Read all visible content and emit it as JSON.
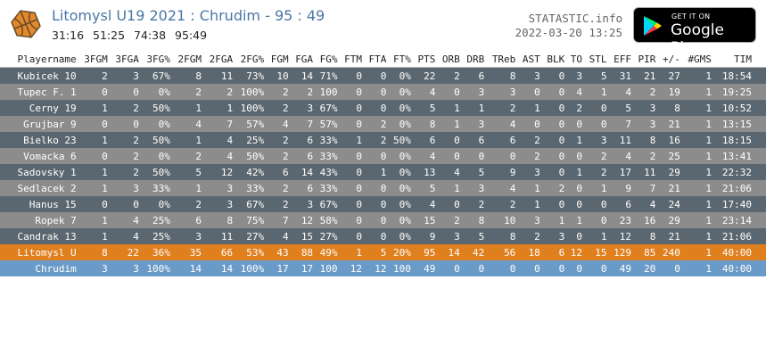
{
  "header": {
    "title": "Litomysl U19 2021 : Chrudim - 95 : 49",
    "periods": [
      "31:16",
      "51:25",
      "74:38",
      "95:49"
    ],
    "site": "STATASTIC.info",
    "datetime": "2022-03-20 13:25",
    "store_badge": {
      "small": "GET IT ON",
      "big": "Google Play"
    }
  },
  "table": {
    "columns": [
      "Playername",
      "3FGM",
      "3FGA",
      "3FG%",
      "2FGM",
      "2FGA",
      "2FG%",
      "FGM",
      "FGA",
      "FG%",
      "FTM",
      "FTA",
      "FT%",
      "PTS",
      "ORB",
      "DRB",
      "TReb",
      "AST",
      "BLK",
      "TO",
      "STL",
      "EFF",
      "PIR",
      "+/-",
      "#GMS",
      "TIM"
    ],
    "rows": [
      [
        "Kubicek 10",
        "2",
        "3",
        "67%",
        "8",
        "11",
        "73%",
        "10",
        "14",
        "71%",
        "0",
        "0",
        "0%",
        "22",
        "2",
        "6",
        "8",
        "3",
        "0",
        "3",
        "5",
        "31",
        "21",
        "27",
        "1",
        "18:54"
      ],
      [
        "Tupec F. 1",
        "0",
        "0",
        "0%",
        "2",
        "2",
        "100%",
        "2",
        "2",
        "100",
        "0",
        "0",
        "0%",
        "4",
        "0",
        "3",
        "3",
        "0",
        "0",
        "4",
        "1",
        "4",
        "2",
        "19",
        "1",
        "19:25"
      ],
      [
        "Cerny 19",
        "1",
        "2",
        "50%",
        "1",
        "1",
        "100%",
        "2",
        "3",
        "67%",
        "0",
        "0",
        "0%",
        "5",
        "1",
        "1",
        "2",
        "1",
        "0",
        "2",
        "0",
        "5",
        "3",
        "8",
        "1",
        "10:52"
      ],
      [
        "Grujbar 9",
        "0",
        "0",
        "0%",
        "4",
        "7",
        "57%",
        "4",
        "7",
        "57%",
        "0",
        "2",
        "0%",
        "8",
        "1",
        "3",
        "4",
        "0",
        "0",
        "0",
        "0",
        "7",
        "3",
        "21",
        "1",
        "13:15"
      ],
      [
        "Bielko 23",
        "1",
        "2",
        "50%",
        "1",
        "4",
        "25%",
        "2",
        "6",
        "33%",
        "1",
        "2",
        "50%",
        "6",
        "0",
        "6",
        "6",
        "2",
        "0",
        "1",
        "3",
        "11",
        "8",
        "16",
        "1",
        "18:15"
      ],
      [
        "Vomacka 6",
        "0",
        "2",
        "0%",
        "2",
        "4",
        "50%",
        "2",
        "6",
        "33%",
        "0",
        "0",
        "0%",
        "4",
        "0",
        "0",
        "0",
        "2",
        "0",
        "0",
        "2",
        "4",
        "2",
        "25",
        "1",
        "13:41"
      ],
      [
        "Sadovsky 1",
        "1",
        "2",
        "50%",
        "5",
        "12",
        "42%",
        "6",
        "14",
        "43%",
        "0",
        "1",
        "0%",
        "13",
        "4",
        "5",
        "9",
        "3",
        "0",
        "1",
        "2",
        "17",
        "11",
        "29",
        "1",
        "22:32"
      ],
      [
        "Sedlacek 2",
        "1",
        "3",
        "33%",
        "1",
        "3",
        "33%",
        "2",
        "6",
        "33%",
        "0",
        "0",
        "0%",
        "5",
        "1",
        "3",
        "4",
        "1",
        "2",
        "0",
        "1",
        "9",
        "7",
        "21",
        "1",
        "21:06"
      ],
      [
        "Hanus 15",
        "0",
        "0",
        "0%",
        "2",
        "3",
        "67%",
        "2",
        "3",
        "67%",
        "0",
        "0",
        "0%",
        "4",
        "0",
        "2",
        "2",
        "1",
        "0",
        "0",
        "0",
        "6",
        "4",
        "24",
        "1",
        "17:40"
      ],
      [
        "Ropek 7",
        "1",
        "4",
        "25%",
        "6",
        "8",
        "75%",
        "7",
        "12",
        "58%",
        "0",
        "0",
        "0%",
        "15",
        "2",
        "8",
        "10",
        "3",
        "1",
        "1",
        "0",
        "23",
        "16",
        "29",
        "1",
        "23:14"
      ],
      [
        "Candrak 13",
        "1",
        "4",
        "25%",
        "3",
        "11",
        "27%",
        "4",
        "15",
        "27%",
        "0",
        "0",
        "0%",
        "9",
        "3",
        "5",
        "8",
        "2",
        "3",
        "0",
        "1",
        "12",
        "8",
        "21",
        "1",
        "21:06"
      ],
      [
        "Litomysl U",
        "8",
        "22",
        "36%",
        "35",
        "66",
        "53%",
        "43",
        "88",
        "49%",
        "1",
        "5",
        "20%",
        "95",
        "14",
        "42",
        "56",
        "18",
        "6",
        "12",
        "15",
        "129",
        "85",
        "240",
        "1",
        "40:00"
      ],
      [
        "Chrudim",
        "3",
        "3",
        "100%",
        "14",
        "14",
        "100%",
        "17",
        "17",
        "100",
        "12",
        "12",
        "100",
        "49",
        "0",
        "0",
        "0",
        "0",
        "0",
        "0",
        "0",
        "49",
        "20",
        "0",
        "1",
        "40:00"
      ]
    ]
  },
  "colors": {
    "team_row": "#e07f1e",
    "opponent_row": "#6a9bc8",
    "row_dark": "#5b6770",
    "row_light": "#8c8c8c"
  }
}
